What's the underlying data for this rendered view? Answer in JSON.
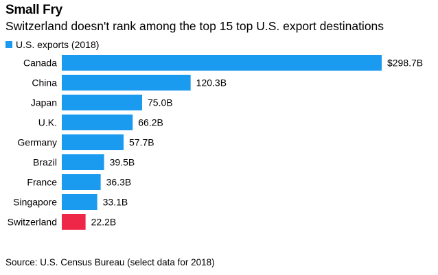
{
  "header": {
    "title": "Small Fry",
    "subtitle": "Switzerland doesn't rank among the top 15 top U.S. export destinations"
  },
  "legend": {
    "label": "U.S. exports (2018)",
    "color": "#1a9bf0"
  },
  "chart_data": {
    "type": "bar",
    "orientation": "horizontal",
    "title": "Small Fry",
    "subtitle": "Switzerland doesn't rank among the top 15 top U.S. export destinations",
    "xlabel": "",
    "ylabel": "",
    "unit": "billion USD",
    "xlim": [
      0,
      300
    ],
    "grid": false,
    "legend_position": "top-left",
    "categories": [
      "Canada",
      "China",
      "Japan",
      "U.K.",
      "Germany",
      "Brazil",
      "France",
      "Singapore",
      "Switzerland"
    ],
    "series": [
      {
        "name": "U.S. exports (2018)",
        "values": [
          298.7,
          120.3,
          75.0,
          66.2,
          57.7,
          39.5,
          36.3,
          33.1,
          22.2
        ]
      }
    ],
    "data_labels": [
      "$298.7B",
      "120.3B",
      "75.0B",
      "66.2B",
      "57.7B",
      "39.5B",
      "36.3B",
      "33.1B",
      "22.2B"
    ],
    "colors": {
      "default": "#1a9bf0",
      "highlight": "#ee2748"
    },
    "highlight_category": "Switzerland"
  },
  "footer": {
    "source": "Source: U.S. Census Bureau (select data for 2018)"
  }
}
